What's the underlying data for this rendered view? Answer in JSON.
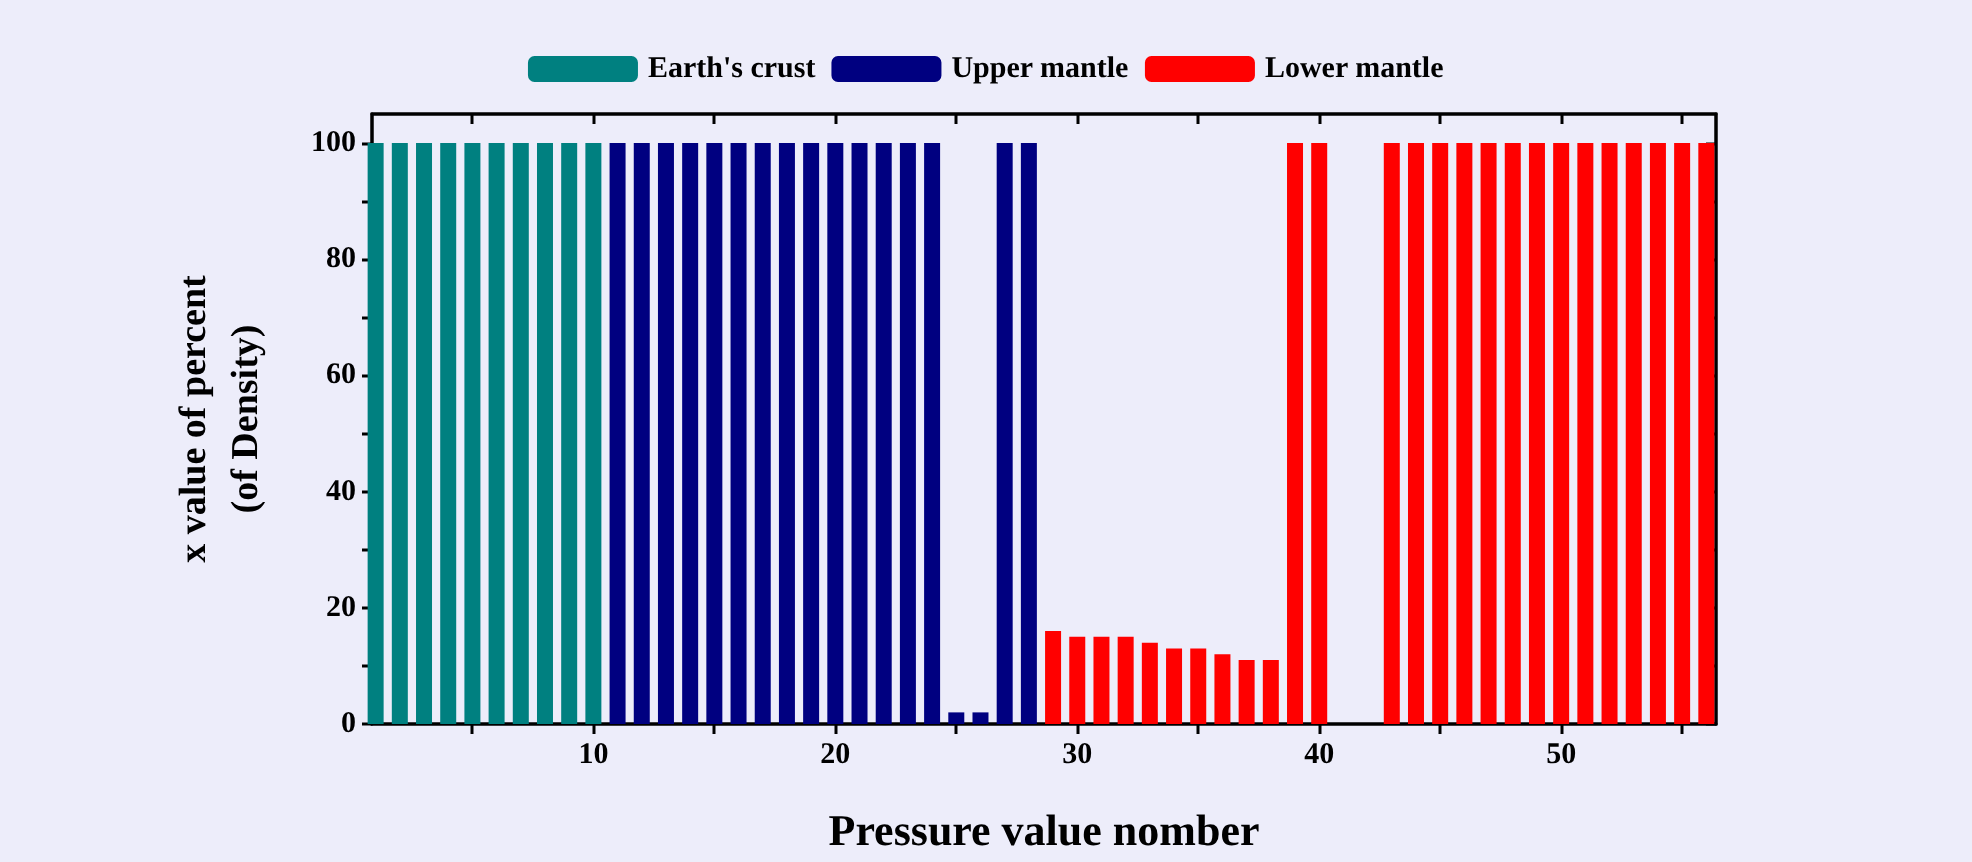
{
  "chart_data": {
    "type": "bar",
    "xlabel": "Pressure value nomber",
    "ylabel": "x value of percent\n(of Density)",
    "xlim": [
      0.85,
      56.4
    ],
    "xticks": [
      {
        "value": 5,
        "label": null
      },
      10,
      {
        "value": 15,
        "label": null
      },
      20,
      {
        "value": 25,
        "label": null
      },
      30,
      {
        "value": 35,
        "label": null
      },
      40,
      {
        "value": 45,
        "label": null
      },
      50,
      {
        "value": 55,
        "label": null
      }
    ],
    "ylim": [
      0,
      105
    ],
    "yticks": [
      0,
      {
        "value": 10,
        "label": null
      },
      20,
      {
        "value": 30,
        "label": null
      },
      40,
      {
        "value": 50,
        "label": null
      },
      60,
      {
        "value": 70,
        "label": null
      },
      80,
      {
        "value": 90,
        "label": null
      },
      100
    ],
    "series": [
      {
        "name": "Earth's crust",
        "color": "#008080",
        "x": [
          1,
          2,
          3,
          4,
          5,
          6,
          7,
          8,
          9,
          10
        ],
        "values": [
          100,
          100,
          100,
          100,
          100,
          100,
          100,
          100,
          100,
          100
        ]
      },
      {
        "name": "Upper mantle",
        "color": "#000080",
        "x": [
          11,
          12,
          13,
          14,
          15,
          16,
          17,
          18,
          19,
          20,
          21,
          22,
          23,
          24,
          25,
          26,
          27,
          28
        ],
        "values": [
          100,
          100,
          100,
          100,
          100,
          100,
          100,
          100,
          100,
          100,
          100,
          100,
          100,
          100,
          2,
          2,
          100,
          100
        ]
      },
      {
        "name": "Lower mantle",
        "color": "#ff0000",
        "x": [
          29,
          30,
          31,
          32,
          33,
          34,
          35,
          36,
          37,
          38,
          39,
          40,
          43,
          44,
          45,
          46,
          47,
          48,
          49,
          50,
          51,
          52,
          53,
          54,
          55,
          56
        ],
        "values": [
          16,
          15,
          15,
          15,
          14,
          13,
          13,
          12,
          11,
          11,
          100,
          100,
          100,
          100,
          100,
          100,
          100,
          100,
          100,
          100,
          100,
          100,
          100,
          100,
          100,
          100
        ]
      }
    ],
    "legend": "top",
    "grid": false
  }
}
